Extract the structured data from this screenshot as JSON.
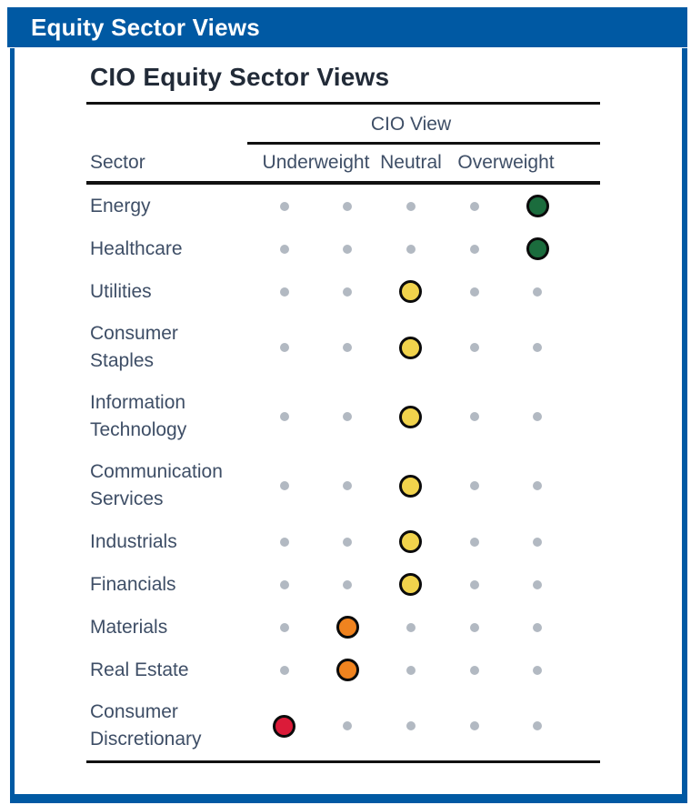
{
  "header": {
    "title": "Equity Sector Views"
  },
  "figure": {
    "title": "CIO Equity Sector Views",
    "group_header": "CIO View",
    "sector_column_header": "Sector",
    "scale_headers": [
      "Underweight",
      "Neutral",
      "Overweight"
    ]
  },
  "colors": {
    "accent_blue": "#0059A3",
    "overweight_green": "#1B6C3D",
    "neutral_yellow": "#F1D34C",
    "slight_underweight_orange": "#F0831F",
    "underweight_red": "#DB1B39",
    "inactive_dot_gray": "#B2B9C2",
    "line_black": "#111111"
  },
  "chart_data": {
    "type": "table",
    "title": "CIO Equity Sector Views",
    "group_header": "CIO View",
    "columns": [
      "Sector",
      "CIO View"
    ],
    "view_scale": {
      "num_positions": 5,
      "position_labels": {
        "position_1": "Underweight",
        "position_3": "Neutral",
        "position_5": "Overweight"
      }
    },
    "rows": [
      {
        "sector": "Energy",
        "position": 5,
        "view": "Overweight",
        "dot_color": "#1B6C3D"
      },
      {
        "sector": "Healthcare",
        "position": 5,
        "view": "Overweight",
        "dot_color": "#1B6C3D"
      },
      {
        "sector": "Utilities",
        "position": 3,
        "view": "Neutral",
        "dot_color": "#F1D34C"
      },
      {
        "sector": "Consumer Staples",
        "position": 3,
        "view": "Neutral",
        "dot_color": "#F1D34C"
      },
      {
        "sector": "Information Technology",
        "position": 3,
        "view": "Neutral",
        "dot_color": "#F1D34C"
      },
      {
        "sector": "Communication Services",
        "position": 3,
        "view": "Neutral",
        "dot_color": "#F1D34C"
      },
      {
        "sector": "Industrials",
        "position": 3,
        "view": "Neutral",
        "dot_color": "#F1D34C"
      },
      {
        "sector": "Financials",
        "position": 3,
        "view": "Neutral",
        "dot_color": "#F1D34C"
      },
      {
        "sector": "Materials",
        "position": 2,
        "view": "Between Underweight and Neutral",
        "dot_color": "#F0831F"
      },
      {
        "sector": "Real Estate",
        "position": 2,
        "view": "Between Underweight and Neutral",
        "dot_color": "#F0831F"
      },
      {
        "sector": "Consumer Discretionary",
        "position": 1,
        "view": "Underweight",
        "dot_color": "#DB1B39"
      }
    ]
  }
}
